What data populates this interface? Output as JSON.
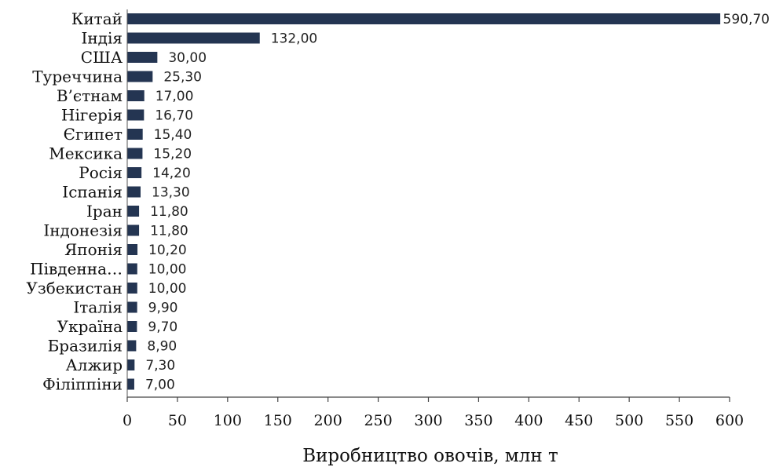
{
  "chart_data": {
    "type": "bar",
    "orientation": "horizontal",
    "categories": [
      "Китай",
      "Індія",
      "США",
      "Туреччина",
      "В’єтнам",
      "Нігерія",
      "Єгипет",
      "Мексика",
      "Росія",
      "Іспанія",
      "Іран",
      "Індонезія",
      "Японія",
      "Південна…",
      "Узбекистан",
      "Італія",
      "Україна",
      "Бразилія",
      "Алжир",
      "Філіппіни"
    ],
    "values": [
      590.7,
      132.0,
      30.0,
      25.3,
      17.0,
      16.7,
      15.4,
      15.2,
      14.2,
      13.3,
      11.8,
      11.8,
      10.2,
      10.0,
      10.0,
      9.9,
      9.7,
      8.9,
      7.3,
      7.0
    ],
    "value_labels": [
      "590,70",
      "132,00",
      "30,00",
      "25,30",
      "17,00",
      "16,70",
      "15,40",
      "15,20",
      "14,20",
      "13,30",
      "11,80",
      "11,80",
      "10,20",
      "10,00",
      "10,00",
      "9,90",
      "9,70",
      "8,90",
      "7,30",
      "7,00"
    ],
    "xlabel": "Виробництво овочів, млн т",
    "ylabel": "",
    "xlim": [
      0,
      600
    ],
    "xticks": [
      0,
      50,
      100,
      150,
      200,
      250,
      300,
      350,
      400,
      450,
      500,
      550,
      600
    ],
    "grid": false,
    "bar_color": "#243552"
  }
}
